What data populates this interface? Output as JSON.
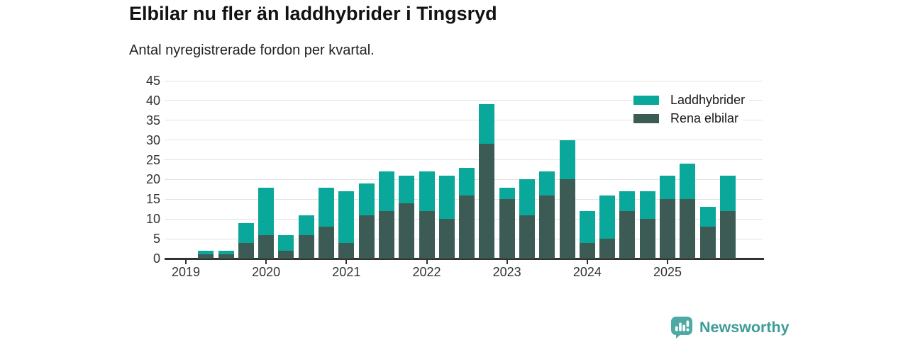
{
  "header": {
    "title": "Elbilar nu fler än laddhybrider i Tingsryd",
    "subtitle": "Antal nyregistrerade fordon per kvartal."
  },
  "chart_data": {
    "type": "bar",
    "stacked": true,
    "title": "Elbilar nu fler än laddhybrider i Tingsryd",
    "subtitle": "Antal nyregistrerade fordon per kvartal.",
    "categories": [
      "2019 Q1",
      "2019 Q2",
      "2019 Q3",
      "2019 Q4",
      "2020 Q1",
      "2020 Q2",
      "2020 Q3",
      "2020 Q4",
      "2021 Q1",
      "2021 Q2",
      "2021 Q3",
      "2021 Q4",
      "2022 Q1",
      "2022 Q2",
      "2022 Q3",
      "2022 Q4",
      "2023 Q1",
      "2023 Q2",
      "2023 Q3",
      "2023 Q4",
      "2024 Q1",
      "2024 Q2",
      "2024 Q3",
      "2024 Q4",
      "2025 Q1",
      "2025 Q2",
      "2025 Q3",
      "2025 Q4"
    ],
    "series": [
      {
        "name": "Rena elbilar",
        "color": "#3B5B54",
        "values": [
          0,
          1,
          1,
          4,
          6,
          2,
          6,
          8,
          4,
          11,
          12,
          14,
          12,
          10,
          16,
          29,
          15,
          11,
          16,
          20,
          4,
          5,
          12,
          10,
          15,
          15,
          8,
          12
        ]
      },
      {
        "name": "Laddhybrider",
        "color": "#0AA79B",
        "values": [
          0,
          1,
          1,
          5,
          12,
          4,
          5,
          10,
          13,
          8,
          10,
          7,
          10,
          11,
          7,
          10,
          3,
          9,
          6,
          10,
          8,
          11,
          5,
          7,
          6,
          9,
          5,
          9
        ]
      }
    ],
    "totals": [
      0,
      2,
      2,
      9,
      18,
      6,
      11,
      18,
      17,
      19,
      22,
      21,
      22,
      21,
      23,
      39,
      18,
      20,
      22,
      30,
      12,
      16,
      17,
      17,
      21,
      24,
      13,
      21
    ],
    "ylim": [
      0,
      45
    ],
    "y_ticks": [
      0,
      5,
      10,
      15,
      20,
      25,
      30,
      35,
      40,
      45
    ],
    "x_year_ticks": [
      "2019",
      "2020",
      "2021",
      "2022",
      "2023",
      "2024",
      "2025"
    ],
    "grid": "horizontal",
    "legend": {
      "position": "top-right",
      "items": [
        {
          "label": "Laddhybrider",
          "color": "#0AA79B"
        },
        {
          "label": "Rena elbilar",
          "color": "#3B5B54"
        }
      ]
    }
  },
  "footer": {
    "brand": "Newsworthy",
    "brand_color": "#3E9C96",
    "icon_color": "#4CA9A3"
  }
}
